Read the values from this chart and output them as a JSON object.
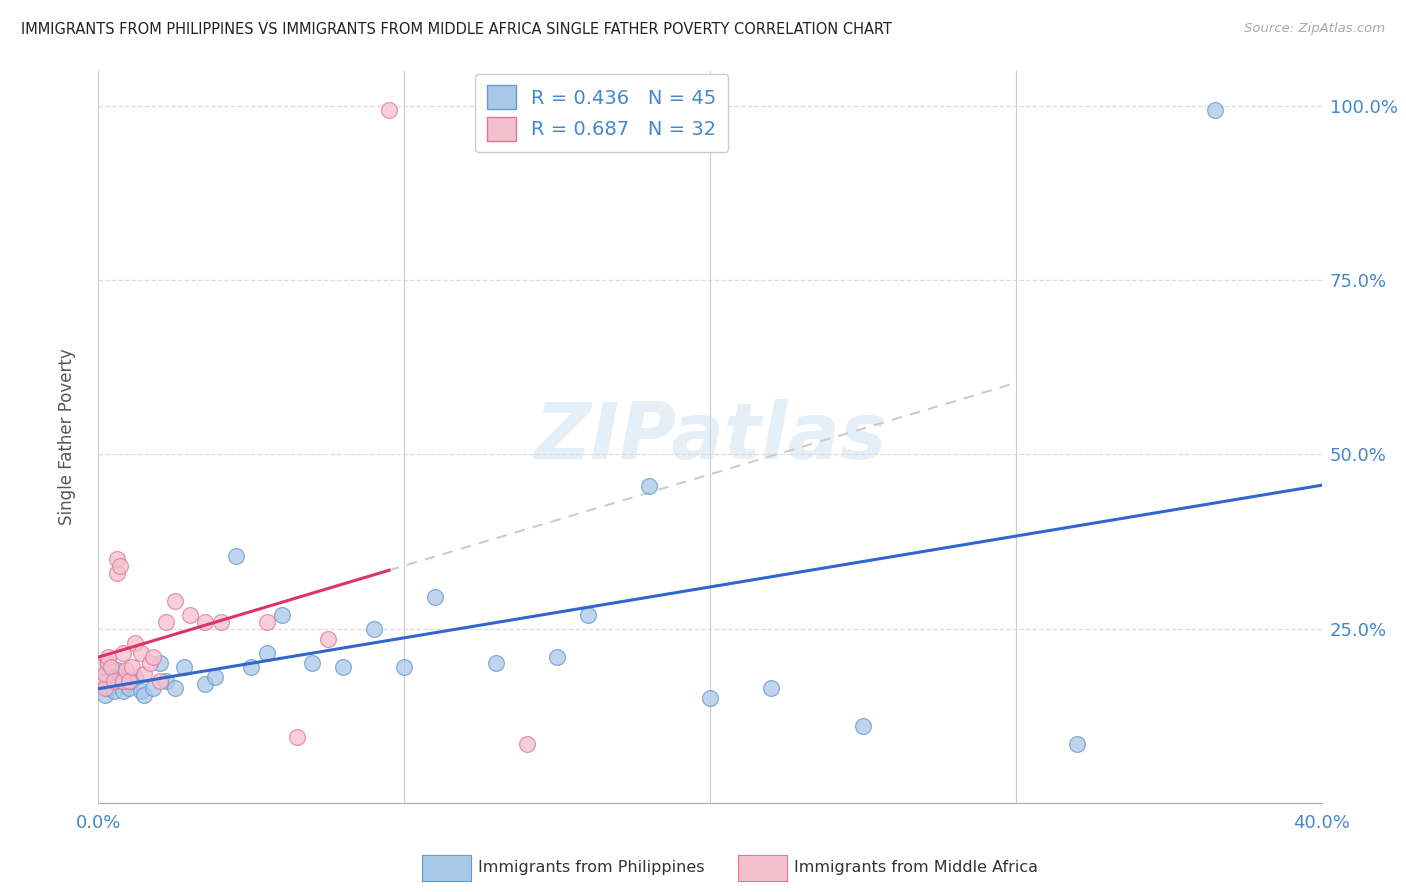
{
  "title": "IMMIGRANTS FROM PHILIPPINES VS IMMIGRANTS FROM MIDDLE AFRICA SINGLE FATHER POVERTY CORRELATION CHART",
  "source": "Source: ZipAtlas.com",
  "ylabel": "Single Father Poverty",
  "x_min": 0.0,
  "x_max": 0.4,
  "y_min": 0.0,
  "y_max": 1.05,
  "x_ticks": [
    0.0,
    0.1,
    0.2,
    0.3,
    0.4
  ],
  "x_tick_labels_show": [
    "0.0%",
    "",
    "",
    "",
    "40.0%"
  ],
  "y_ticks": [
    0.0,
    0.25,
    0.5,
    0.75,
    1.0
  ],
  "y_tick_labels": [
    "",
    "25.0%",
    "50.0%",
    "75.0%",
    "100.0%"
  ],
  "philippines_face": "#a8c8e8",
  "philippines_edge": "#6699cc",
  "middle_africa_face": "#f5c0ce",
  "middle_africa_edge": "#dd7799",
  "blue_line_color": "#3366cc",
  "pink_line_color": "#dd3366",
  "gray_dash_color": "#cccccc",
  "R_philippines": 0.436,
  "N_philippines": 45,
  "R_middle_africa": 0.687,
  "N_middle_africa": 32,
  "watermark": "ZIPatlas",
  "label_philippines": "Immigrants from Philippines",
  "label_middle_africa": "Immigrants from Middle Africa",
  "philippines_x": [
    0.001,
    0.001,
    0.002,
    0.002,
    0.003,
    0.003,
    0.004,
    0.004,
    0.005,
    0.005,
    0.006,
    0.006,
    0.007,
    0.008,
    0.009,
    0.01,
    0.011,
    0.012,
    0.014,
    0.015,
    0.018,
    0.02,
    0.022,
    0.025,
    0.028,
    0.035,
    0.038,
    0.045,
    0.05,
    0.055,
    0.06,
    0.07,
    0.08,
    0.09,
    0.1,
    0.11,
    0.13,
    0.15,
    0.16,
    0.18,
    0.2,
    0.22,
    0.25,
    0.32,
    0.365
  ],
  "philippines_y": [
    0.175,
    0.195,
    0.155,
    0.175,
    0.165,
    0.185,
    0.17,
    0.19,
    0.16,
    0.18,
    0.175,
    0.19,
    0.18,
    0.16,
    0.175,
    0.165,
    0.175,
    0.18,
    0.16,
    0.155,
    0.165,
    0.2,
    0.175,
    0.165,
    0.195,
    0.17,
    0.18,
    0.355,
    0.195,
    0.215,
    0.27,
    0.2,
    0.195,
    0.25,
    0.195,
    0.295,
    0.2,
    0.21,
    0.27,
    0.455,
    0.15,
    0.165,
    0.11,
    0.085,
    0.995
  ],
  "middle_africa_x": [
    0.001,
    0.001,
    0.002,
    0.002,
    0.003,
    0.003,
    0.004,
    0.005,
    0.006,
    0.006,
    0.007,
    0.008,
    0.008,
    0.009,
    0.01,
    0.011,
    0.012,
    0.014,
    0.015,
    0.017,
    0.018,
    0.02,
    0.022,
    0.025,
    0.03,
    0.035,
    0.04,
    0.055,
    0.065,
    0.075,
    0.095,
    0.14
  ],
  "middle_africa_y": [
    0.175,
    0.195,
    0.165,
    0.185,
    0.2,
    0.21,
    0.195,
    0.175,
    0.33,
    0.35,
    0.34,
    0.175,
    0.215,
    0.19,
    0.175,
    0.195,
    0.23,
    0.215,
    0.185,
    0.2,
    0.21,
    0.175,
    0.26,
    0.29,
    0.27,
    0.26,
    0.26,
    0.26,
    0.095,
    0.235,
    0.995,
    0.085
  ]
}
